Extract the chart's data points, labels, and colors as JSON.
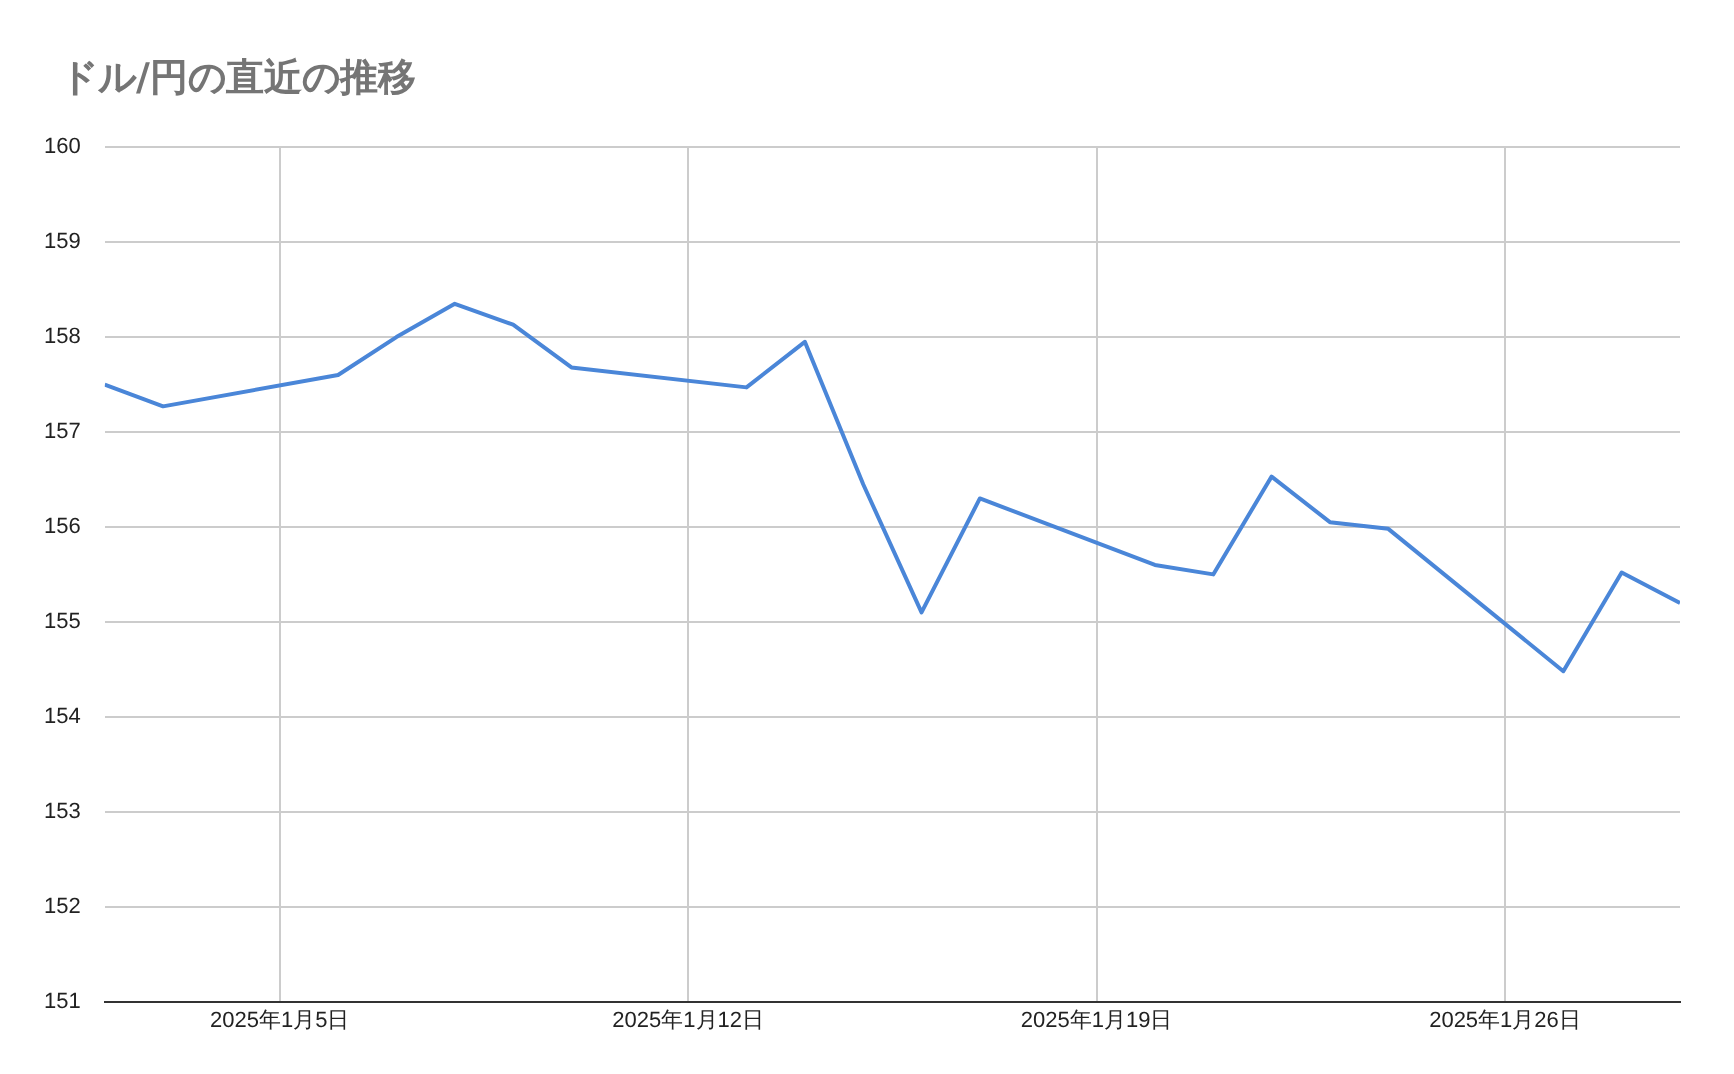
{
  "chart_data": {
    "type": "line",
    "title": "ドル/円の直近の推移",
    "x": [
      "2025-01-02",
      "2025-01-03",
      "2025-01-06",
      "2025-01-07",
      "2025-01-08",
      "2025-01-09",
      "2025-01-10",
      "2025-01-13",
      "2025-01-14",
      "2025-01-15",
      "2025-01-16",
      "2025-01-17",
      "2025-01-20",
      "2025-01-21",
      "2025-01-22",
      "2025-01-23",
      "2025-01-24",
      "2025-01-27",
      "2025-01-28",
      "2025-01-29"
    ],
    "series": [
      {
        "color": "#4a86d8",
        "values": [
          157.5,
          157.27,
          157.6,
          158.0,
          158.35,
          158.13,
          157.68,
          157.47,
          157.95,
          156.45,
          155.1,
          156.3,
          155.6,
          155.5,
          156.53,
          156.05,
          155.98,
          154.48,
          155.52,
          155.2
        ]
      }
    ],
    "xlim": [
      "2025-01-02",
      "2025-01-29"
    ],
    "xticks": [
      {
        "value": "2025-01-05",
        "label": "2025年1月5日"
      },
      {
        "value": "2025-01-12",
        "label": "2025年1月12日"
      },
      {
        "value": "2025-01-19",
        "label": "2025年1月19日"
      },
      {
        "value": "2025-01-26",
        "label": "2025年1月26日"
      }
    ],
    "ylim": [
      151,
      160
    ],
    "yticks": [
      151,
      152,
      153,
      154,
      155,
      156,
      157,
      158,
      159,
      160
    ],
    "grid": true,
    "legend": false,
    "marker": "none",
    "line_style": "solid"
  }
}
